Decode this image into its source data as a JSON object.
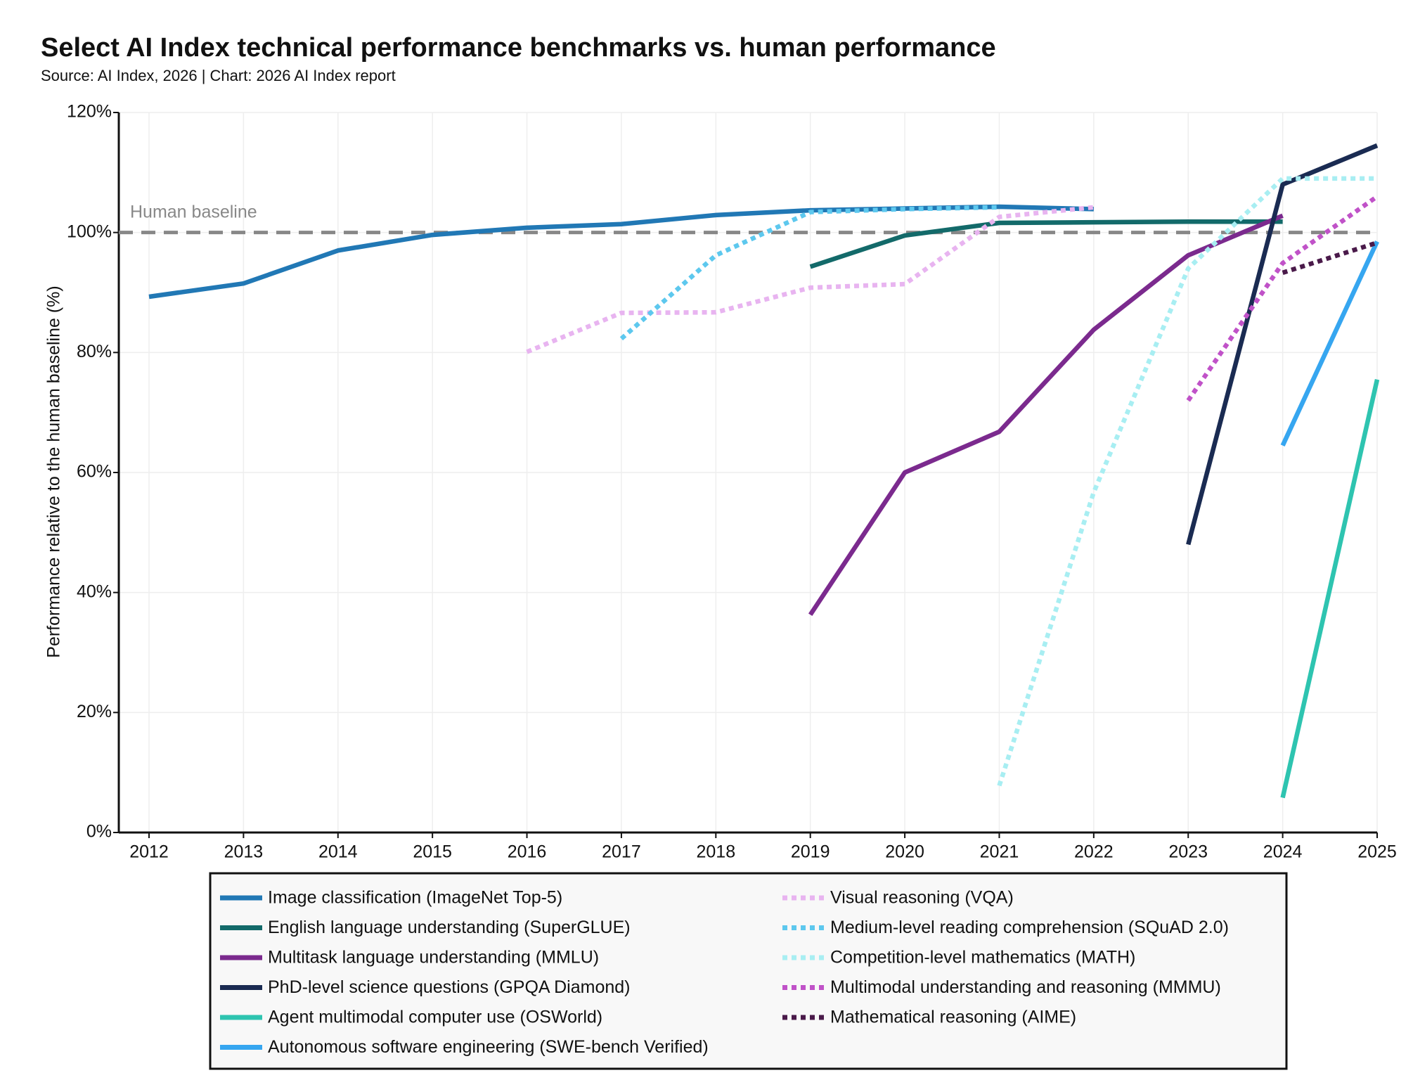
{
  "chart_data": {
    "type": "line",
    "title": "Select AI Index technical performance benchmarks vs. human performance",
    "subtitle": "Source: AI Index, 2026 | Chart: 2026 AI Index report",
    "y_label": "Performance relative to the human baseline (%)",
    "xlim": [
      2011.68,
      2025
    ],
    "ylim": [
      0,
      120
    ],
    "xticks": [
      2012,
      2013,
      2014,
      2015,
      2016,
      2017,
      2018,
      2019,
      2020,
      2021,
      2022,
      2023,
      2024,
      2025
    ],
    "yticks": [
      {
        "value": 0,
        "label": "0%"
      },
      {
        "value": 20,
        "label": "20%"
      },
      {
        "value": 40,
        "label": "40%"
      },
      {
        "value": 60,
        "label": "60%"
      },
      {
        "value": 80,
        "label": "80%"
      },
      {
        "value": 100,
        "label": "100%"
      },
      {
        "value": 120,
        "label": "120%"
      }
    ],
    "grid": true,
    "baseline": {
      "value": 100,
      "label": "Human baseline",
      "color": "#888888"
    },
    "series": [
      {
        "name": "Image classification (ImageNet Top-5)",
        "color": "#2178b5",
        "dotted": false,
        "x": [
          2012,
          2013,
          2014,
          2015,
          2016,
          2017,
          2018,
          2019,
          2020,
          2021,
          2022
        ],
        "values": [
          89.3,
          91.5,
          97,
          99.6,
          100.8,
          101.4,
          102.9,
          103.7,
          104,
          104.3,
          103.9
        ]
      },
      {
        "name": "English language understanding (SuperGLUE)",
        "color": "#136a6a",
        "dotted": false,
        "x": [
          2019,
          2020,
          2021,
          2022,
          2023,
          2024
        ],
        "values": [
          94.3,
          99.5,
          101.6,
          101.7,
          101.8,
          101.8
        ]
      },
      {
        "name": "Multitask language understanding (MMLU)",
        "color": "#7b2a8e",
        "dotted": false,
        "x": [
          2019,
          2020,
          2021,
          2022,
          2023,
          2024
        ],
        "values": [
          36.3,
          60,
          66.8,
          83.8,
          96.2,
          102.8
        ]
      },
      {
        "name": "PhD-level science questions (GPQA Diamond)",
        "color": "#1a2b52",
        "dotted": false,
        "x": [
          2023,
          2024,
          2025
        ],
        "values": [
          48,
          108,
          114.5
        ]
      },
      {
        "name": "Agent multimodal computer use (OSWorld)",
        "color": "#2ec4b0",
        "dotted": false,
        "x": [
          2024,
          2025
        ],
        "values": [
          5.8,
          75.5
        ]
      },
      {
        "name": "Autonomous software engineering (SWE-bench Verified)",
        "color": "#36a6f0",
        "dotted": false,
        "x": [
          2024,
          2025
        ],
        "values": [
          64.5,
          98.5
        ]
      },
      {
        "name": "Visual reasoning (VQA)",
        "color": "#e8b4f0",
        "dotted": true,
        "x": [
          2016,
          2017,
          2018,
          2019,
          2020,
          2021,
          2022
        ],
        "values": [
          80.1,
          86.6,
          86.7,
          90.8,
          91.4,
          102.6,
          104.2
        ]
      },
      {
        "name": "Medium-level reading comprehension (SQuAD 2.0)",
        "color": "#5dc8ee",
        "dotted": true,
        "x": [
          2017,
          2018,
          2019,
          2020,
          2021
        ],
        "values": [
          82.3,
          96.2,
          103.4,
          103.9,
          104.2
        ]
      },
      {
        "name": "Competition-level mathematics (MATH)",
        "color": "#a8eef2",
        "dotted": true,
        "x": [
          2021,
          2022,
          2023,
          2024,
          2025
        ],
        "values": [
          7.8,
          56.7,
          94,
          109,
          109
        ]
      },
      {
        "name": "Multimodal understanding and reasoning (MMMU)",
        "color": "#c052c8",
        "dotted": true,
        "x": [
          2023,
          2024,
          2025
        ],
        "values": [
          72,
          94.9,
          106
        ]
      },
      {
        "name": "Mathematical reasoning (AIME)",
        "color": "#4a1a4a",
        "dotted": true,
        "x": [
          2024,
          2025
        ],
        "values": [
          93.3,
          98.3
        ]
      }
    ]
  }
}
